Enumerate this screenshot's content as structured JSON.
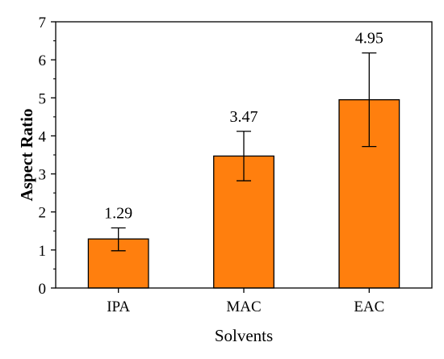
{
  "chart_data": {
    "type": "bar",
    "categories": [
      "IPA",
      "MAC",
      "EAC"
    ],
    "values": [
      1.29,
      3.47,
      4.95
    ],
    "error_low": [
      0.98,
      2.82,
      3.72
    ],
    "error_high": [
      1.58,
      4.12,
      6.18
    ],
    "data_labels": [
      "1.29",
      "3.47",
      "4.95"
    ],
    "xlabel": "Solvents",
    "ylabel": "Aspect Ratio",
    "ylim": [
      0,
      7
    ],
    "yticks": [
      "0",
      "1",
      "2",
      "3",
      "4",
      "5",
      "6",
      "7"
    ],
    "grid": false,
    "legend": "none",
    "bar_color": "#ff7f0e",
    "bar_edge_color": "#000000"
  }
}
